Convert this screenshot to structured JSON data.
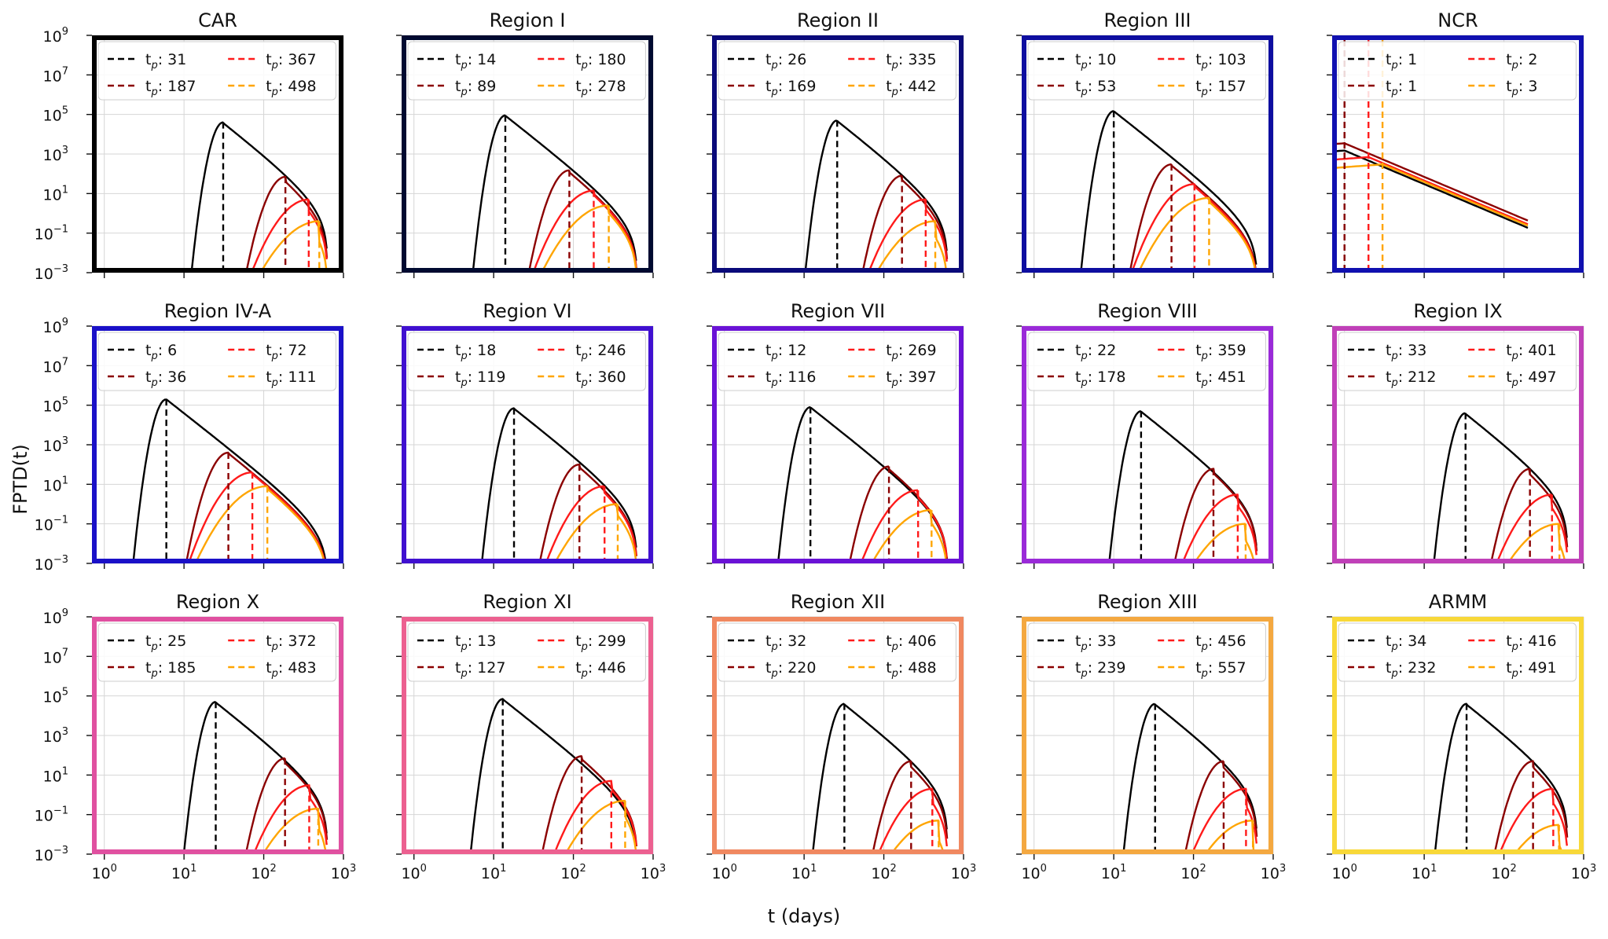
{
  "figure": {
    "ylabel": "FPTD(t)",
    "xlabel": "t (days)",
    "legend_prefix": "t",
    "legend_sub": "p",
    "legend_sep": ": "
  },
  "series_colors": [
    "#000000",
    "#8b0000",
    "#ff1a1a",
    "#ffa500"
  ],
  "chart_data": [
    {
      "type": "line",
      "title": "CAR",
      "frame_color": "#000000",
      "xlim": [
        0.7,
        1000
      ],
      "ylim": [
        0.001,
        1000000000
      ],
      "xscale": "log",
      "yscale": "log",
      "grid": true,
      "legend_placement": "top",
      "x_ticks": [
        "10^0",
        "10^1",
        "10^2",
        "10^3"
      ],
      "y_ticks": [
        "10^-3",
        "10^-1",
        "10^1",
        "10^3",
        "10^5",
        "10^7",
        "10^9"
      ],
      "peaks": [
        31,
        187,
        367,
        498
      ],
      "peak_values": [
        40000,
        70,
        5,
        0.4
      ]
    },
    {
      "type": "line",
      "title": "Region I",
      "frame_color": "#000a30",
      "xlim": [
        0.7,
        1000
      ],
      "ylim": [
        0.001,
        1000000000
      ],
      "xscale": "log",
      "yscale": "log",
      "grid": true,
      "legend_placement": "top",
      "x_ticks": [
        "10^0",
        "10^1",
        "10^2",
        "10^3"
      ],
      "y_ticks": [
        "10^-3",
        "10^-1",
        "10^1",
        "10^3",
        "10^5",
        "10^7",
        "10^9"
      ],
      "peaks": [
        14,
        89,
        180,
        278
      ],
      "peak_values": [
        90000,
        150,
        14,
        2.5
      ]
    },
    {
      "type": "line",
      "title": "Region II",
      "frame_color": "#0a0a7a",
      "xlim": [
        0.7,
        1000
      ],
      "ylim": [
        0.001,
        1000000000
      ],
      "xscale": "log",
      "yscale": "log",
      "grid": true,
      "legend_placement": "top",
      "x_ticks": [
        "10^0",
        "10^1",
        "10^2",
        "10^3"
      ],
      "y_ticks": [
        "10^-3",
        "10^-1",
        "10^1",
        "10^3",
        "10^5",
        "10^7",
        "10^9"
      ],
      "peaks": [
        26,
        169,
        335,
        442
      ],
      "peak_values": [
        50000,
        80,
        5,
        0.4
      ]
    },
    {
      "type": "line",
      "title": "Region III",
      "frame_color": "#0e0ea0",
      "xlim": [
        0.7,
        1000
      ],
      "ylim": [
        0.001,
        1000000000
      ],
      "xscale": "log",
      "yscale": "log",
      "grid": true,
      "legend_placement": "top",
      "x_ticks": [
        "10^0",
        "10^1",
        "10^2",
        "10^3"
      ],
      "y_ticks": [
        "10^-3",
        "10^-1",
        "10^1",
        "10^3",
        "10^5",
        "10^7",
        "10^9"
      ],
      "peaks": [
        10,
        53,
        103,
        157
      ],
      "peak_values": [
        150000,
        300,
        30,
        6
      ]
    },
    {
      "type": "line",
      "title": "NCR",
      "frame_color": "#1010b0",
      "xlim": [
        0.7,
        1000
      ],
      "ylim": [
        0.001,
        1000000000
      ],
      "xscale": "log",
      "yscale": "log",
      "grid": true,
      "legend_placement": "top",
      "x_ticks": [
        "10^0",
        "10^1",
        "10^2",
        "10^3"
      ],
      "y_ticks": [
        "10^-3",
        "10^-1",
        "10^1",
        "10^3",
        "10^5",
        "10^7",
        "10^9"
      ],
      "peaks": [
        1,
        1,
        2,
        3
      ],
      "peak_values": [
        1500,
        3500,
        700,
        300
      ]
    },
    {
      "type": "line",
      "title": "Region IV-A",
      "frame_color": "#1a10c8",
      "xlim": [
        0.7,
        1000
      ],
      "ylim": [
        0.001,
        1000000000
      ],
      "xscale": "log",
      "yscale": "log",
      "grid": true,
      "legend_placement": "top",
      "x_ticks": [
        "10^0",
        "10^1",
        "10^2",
        "10^3"
      ],
      "y_ticks": [
        "10^-3",
        "10^-1",
        "10^1",
        "10^3",
        "10^5",
        "10^7",
        "10^9"
      ],
      "peaks": [
        6,
        36,
        72,
        111
      ],
      "peak_values": [
        200000,
        400,
        40,
        8
      ]
    },
    {
      "type": "line",
      "title": "Region VI",
      "frame_color": "#4010d0",
      "xlim": [
        0.7,
        1000
      ],
      "ylim": [
        0.001,
        1000000000
      ],
      "xscale": "log",
      "yscale": "log",
      "grid": true,
      "legend_placement": "top",
      "x_ticks": [
        "10^0",
        "10^1",
        "10^2",
        "10^3"
      ],
      "y_ticks": [
        "10^-3",
        "10^-1",
        "10^1",
        "10^3",
        "10^5",
        "10^7",
        "10^9"
      ],
      "peaks": [
        18,
        119,
        246,
        360
      ],
      "peak_values": [
        70000,
        100,
        8,
        1
      ]
    },
    {
      "type": "line",
      "title": "Region VII",
      "frame_color": "#6a12d6",
      "xlim": [
        0.7,
        1000
      ],
      "ylim": [
        0.001,
        1000000000
      ],
      "xscale": "log",
      "yscale": "log",
      "grid": true,
      "legend_placement": "top",
      "x_ticks": [
        "10^0",
        "10^1",
        "10^2",
        "10^3"
      ],
      "y_ticks": [
        "10^-3",
        "10^-1",
        "10^1",
        "10^3",
        "10^5",
        "10^7",
        "10^9"
      ],
      "peaks": [
        12,
        116,
        269,
        397
      ],
      "peak_values": [
        80000,
        80,
        5,
        0.5
      ]
    },
    {
      "type": "line",
      "title": "Region VIII",
      "frame_color": "#9a2ad8",
      "xlim": [
        0.7,
        1000
      ],
      "ylim": [
        0.001,
        1000000000
      ],
      "xscale": "log",
      "yscale": "log",
      "grid": true,
      "legend_placement": "top",
      "x_ticks": [
        "10^0",
        "10^1",
        "10^2",
        "10^3"
      ],
      "y_ticks": [
        "10^-3",
        "10^-1",
        "10^1",
        "10^3",
        "10^5",
        "10^7",
        "10^9"
      ],
      "peaks": [
        22,
        178,
        359,
        451
      ],
      "peak_values": [
        50000,
        60,
        3,
        0.1
      ]
    },
    {
      "type": "line",
      "title": "Region IX",
      "frame_color": "#c040b8",
      "xlim": [
        0.7,
        1000
      ],
      "ylim": [
        0.001,
        1000000000
      ],
      "xscale": "log",
      "yscale": "log",
      "grid": true,
      "legend_placement": "top",
      "x_ticks": [
        "10^0",
        "10^1",
        "10^2",
        "10^3"
      ],
      "y_ticks": [
        "10^-3",
        "10^-1",
        "10^1",
        "10^3",
        "10^5",
        "10^7",
        "10^9"
      ],
      "peaks": [
        33,
        212,
        401,
        497
      ],
      "peak_values": [
        40000,
        60,
        3,
        0.1
      ]
    },
    {
      "type": "line",
      "title": "Region X",
      "frame_color": "#e050a0",
      "xlim": [
        0.7,
        1000
      ],
      "ylim": [
        0.001,
        1000000000
      ],
      "xscale": "log",
      "yscale": "log",
      "grid": true,
      "legend_placement": "top",
      "x_ticks": [
        "10^0",
        "10^1",
        "10^2",
        "10^3"
      ],
      "y_ticks": [
        "10^-3",
        "10^-1",
        "10^1",
        "10^3",
        "10^5",
        "10^7",
        "10^9"
      ],
      "peaks": [
        25,
        185,
        372,
        483
      ],
      "peak_values": [
        50000,
        70,
        3,
        0.2
      ]
    },
    {
      "type": "line",
      "title": "Region XI",
      "frame_color": "#ec6090",
      "xlim": [
        0.7,
        1000
      ],
      "ylim": [
        0.001,
        1000000000
      ],
      "xscale": "log",
      "yscale": "log",
      "grid": true,
      "legend_placement": "top",
      "x_ticks": [
        "10^0",
        "10^1",
        "10^2",
        "10^3"
      ],
      "y_ticks": [
        "10^-3",
        "10^-1",
        "10^1",
        "10^3",
        "10^5",
        "10^7",
        "10^9"
      ],
      "peaks": [
        13,
        127,
        299,
        446
      ],
      "peak_values": [
        70000,
        90,
        5,
        0.5
      ]
    },
    {
      "type": "line",
      "title": "Region XII",
      "frame_color": "#f08860",
      "xlim": [
        0.7,
        1000
      ],
      "ylim": [
        0.001,
        1000000000
      ],
      "xscale": "log",
      "yscale": "log",
      "grid": true,
      "legend_placement": "top",
      "x_ticks": [
        "10^0",
        "10^1",
        "10^2",
        "10^3"
      ],
      "y_ticks": [
        "10^-3",
        "10^-1",
        "10^1",
        "10^3",
        "10^5",
        "10^7",
        "10^9"
      ],
      "peaks": [
        32,
        220,
        406,
        488
      ],
      "peak_values": [
        40000,
        50,
        2,
        0.05
      ]
    },
    {
      "type": "line",
      "title": "Region XIII",
      "frame_color": "#f4a840",
      "xlim": [
        0.7,
        1000
      ],
      "ylim": [
        0.001,
        1000000000
      ],
      "xscale": "log",
      "yscale": "log",
      "grid": true,
      "legend_placement": "top",
      "x_ticks": [
        "10^0",
        "10^1",
        "10^2",
        "10^3"
      ],
      "y_ticks": [
        "10^-3",
        "10^-1",
        "10^1",
        "10^3",
        "10^5",
        "10^7",
        "10^9"
      ],
      "peaks": [
        33,
        239,
        456,
        557
      ],
      "peak_values": [
        40000,
        50,
        2,
        0.05
      ]
    },
    {
      "type": "line",
      "title": "ARMM",
      "frame_color": "#f8d838",
      "xlim": [
        0.7,
        1000
      ],
      "ylim": [
        0.001,
        1000000000
      ],
      "xscale": "log",
      "yscale": "log",
      "grid": true,
      "legend_placement": "top",
      "x_ticks": [
        "10^0",
        "10^1",
        "10^2",
        "10^3"
      ],
      "y_ticks": [
        "10^-3",
        "10^-1",
        "10^1",
        "10^3",
        "10^5",
        "10^7",
        "10^9"
      ],
      "peaks": [
        34,
        232,
        416,
        491
      ],
      "peak_values": [
        40000,
        50,
        2,
        0.03
      ]
    }
  ]
}
